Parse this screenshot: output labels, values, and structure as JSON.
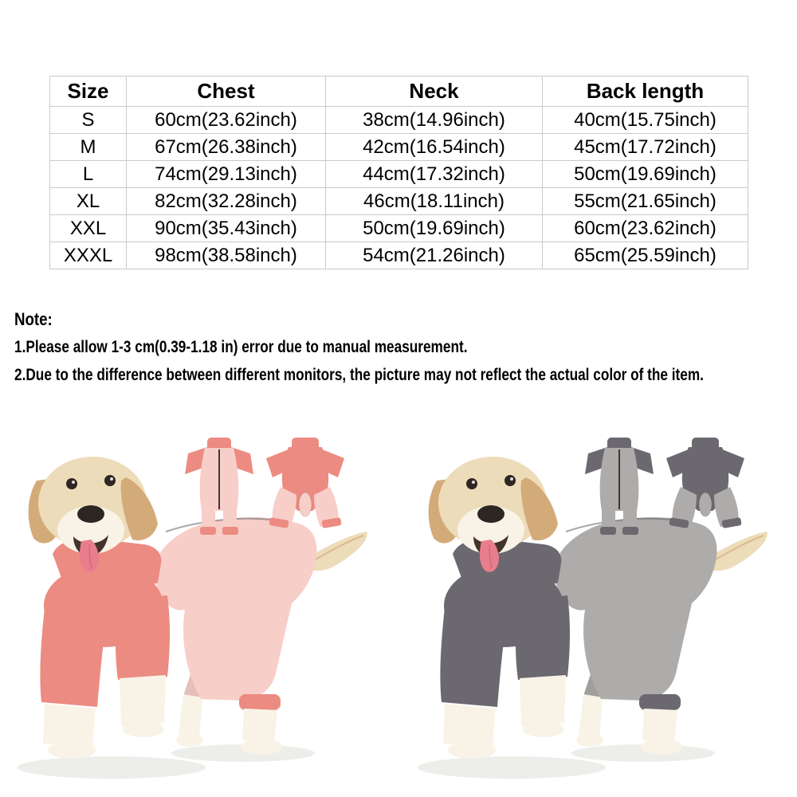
{
  "size_table": {
    "headers": [
      "Size",
      "Chest",
      "Neck",
      "Back length"
    ],
    "rows": [
      [
        "S",
        "60cm(23.62inch)",
        "38cm(14.96inch)",
        "40cm(15.75inch)"
      ],
      [
        "M",
        "67cm(26.38inch)",
        "42cm(16.54inch)",
        "45cm(17.72inch)"
      ],
      [
        "L",
        "74cm(29.13inch)",
        "44cm(17.32inch)",
        "50cm(19.69inch)"
      ],
      [
        "XL",
        "82cm(32.28inch)",
        "46cm(18.11inch)",
        "55cm(21.65inch)"
      ],
      [
        "XXL",
        "90cm(35.43inch)",
        "50cm(19.69inch)",
        "60cm(23.62inch)"
      ],
      [
        "XXXL",
        "98cm(38.58inch)",
        "54cm(21.26inch)",
        "65cm(25.59inch)"
      ]
    ]
  },
  "note": {
    "title": "Note:",
    "items": [
      "1.Please allow 1-3 cm(0.39-1.18 in) error due to manual measurement.",
      "2.Due to the difference between different monitors, the picture may not reflect the actual color of the item."
    ]
  },
  "products": [
    {
      "variant": "pink",
      "suit_main": "#f7cec8",
      "suit_accent": "#ec8b81"
    },
    {
      "variant": "gray",
      "suit_main": "#aeacaa",
      "suit_accent": "#6c6870"
    }
  ],
  "colors": {
    "table_border": "#c9c9c9",
    "text": "#000000",
    "fur_cream": "#eddcba",
    "fur_tan": "#d3ab79",
    "fur_light": "#f8f3e6",
    "tongue": "#e87e8b",
    "nose": "#2e2623",
    "zipper": "#3a3a3a",
    "shadow": "#ededea"
  }
}
